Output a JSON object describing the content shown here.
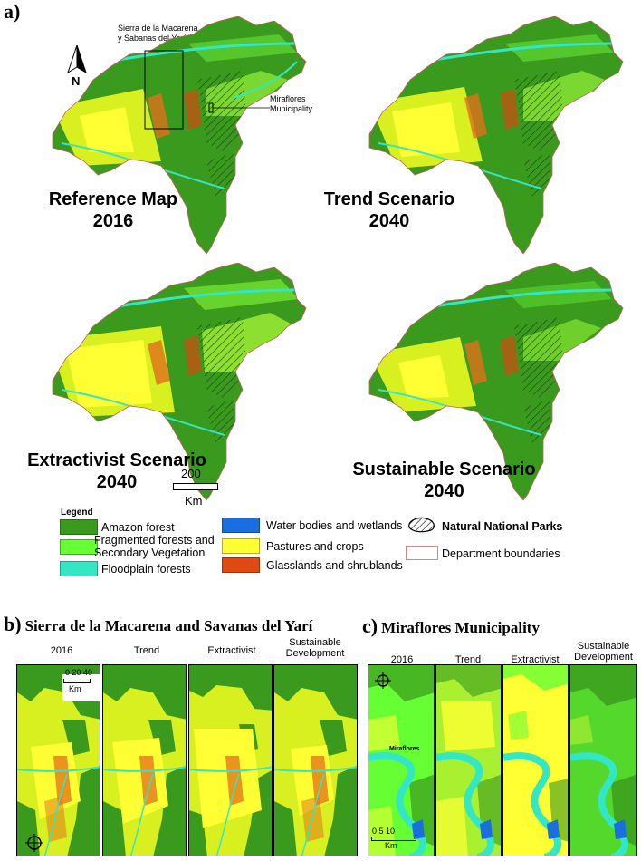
{
  "panel_a": {
    "letter": "a)",
    "inset_label": "Sierra de la Macarena\ny Sabanas del Yarí",
    "miraflores_label": "Miraflores\nMunicipality",
    "north": "N",
    "maps": [
      {
        "title_line1": "Reference Map",
        "title_line2": "2016"
      },
      {
        "title_line1": "Trend Scenario",
        "title_line2": "2040"
      },
      {
        "title_line1": "Extractivist Scenario",
        "title_line2": "2040"
      },
      {
        "title_line1": "Sustainable Scenario",
        "title_line2": "2040"
      }
    ],
    "scale_value": "200",
    "scale_unit": "Km"
  },
  "legend": {
    "title": "Legend",
    "items": [
      {
        "label": "Amazon forest",
        "color": "#3a9a1e"
      },
      {
        "label": "Fragmented forests and\nSecondary Vegetation",
        "color": "#66ff33"
      },
      {
        "label": "Floodplain forests",
        "color": "#33e6c4"
      },
      {
        "label": "Water bodies and wetlands",
        "color": "#1a6fe0"
      },
      {
        "label": "Pastures and crops",
        "color": "#ffff33"
      },
      {
        "label": "Glasslands and shrublands",
        "color": "#e04a10"
      },
      {
        "label": "Natural National Parks",
        "color": "#000000"
      },
      {
        "label": "Department boundaries",
        "color": "#e08080"
      }
    ]
  },
  "panel_b": {
    "letter": "b)",
    "title": "Sierra de la Macarena and Savanas del Yarí",
    "columns": [
      "2016",
      "Trend",
      "Extractivist",
      "Sustainable\nDevelopment"
    ],
    "scale_text": "0 20 40",
    "scale_unit": "Km"
  },
  "panel_c": {
    "letter": "c)",
    "title": "Miraflores Municipality",
    "columns": [
      "2016",
      "Trend",
      "Extractivist",
      "Sustainable\nDevelopment"
    ],
    "town_label": "Miraflores",
    "scale_text": "0 5 10",
    "scale_unit": "Km"
  }
}
